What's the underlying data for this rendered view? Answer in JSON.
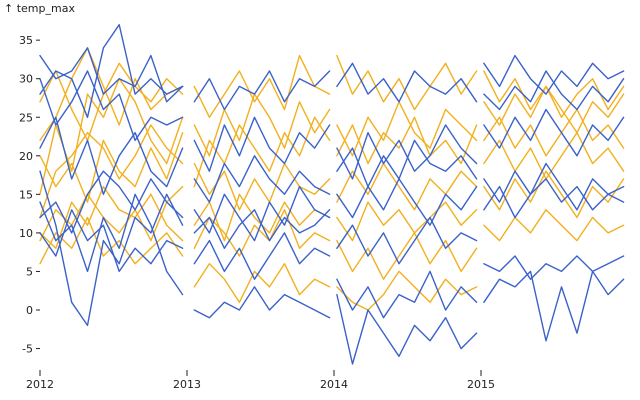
{
  "chart_data": {
    "type": "line",
    "title": "",
    "xlabel": "",
    "ylabel": "↑ temp_max",
    "ylim": [
      -7,
      38
    ],
    "x_ticks": [
      "2012",
      "2013",
      "2014",
      "2015"
    ],
    "y_ticks": [
      -5,
      0,
      5,
      10,
      15,
      20,
      25,
      30,
      35
    ],
    "grid": false,
    "legend": "none",
    "colors": {
      "orange": "#f2b01e",
      "blue": "#3b62c9"
    },
    "groups": [
      {
        "year": "2012",
        "x_start": 2012.0,
        "x_end": 2012.97
      },
      {
        "year": "2013",
        "x_start": 2013.05,
        "x_end": 2013.97
      },
      {
        "year": "2014",
        "x_start": 2014.02,
        "x_end": 2014.97
      },
      {
        "year": "2015",
        "x_start": 2015.02,
        "x_end": 2015.97
      }
    ],
    "series": [
      {
        "group": 0,
        "color": "orange",
        "values": [
          22,
          25,
          30,
          34,
          29,
          24,
          30,
          26,
          28,
          29
        ]
      },
      {
        "group": 0,
        "color": "orange",
        "values": [
          12,
          18,
          20,
          23,
          21,
          17,
          20,
          24,
          21,
          19
        ]
      },
      {
        "group": 0,
        "color": "orange",
        "values": [
          9,
          13,
          11,
          15,
          12,
          10,
          13,
          9,
          14,
          16
        ]
      },
      {
        "group": 0,
        "color": "orange",
        "values": [
          6,
          10,
          8,
          12,
          7,
          9,
          6,
          8,
          10,
          7
        ]
      },
      {
        "group": 0,
        "color": "orange",
        "values": [
          20,
          16,
          19,
          14,
          22,
          18,
          16,
          21,
          17,
          23
        ]
      },
      {
        "group": 0,
        "color": "orange",
        "values": [
          15,
          24,
          18,
          28,
          25,
          30,
          27,
          22,
          19,
          25
        ]
      },
      {
        "group": 0,
        "color": "orange",
        "values": [
          10,
          8,
          14,
          11,
          16,
          13,
          12,
          15,
          11,
          9
        ]
      },
      {
        "group": 0,
        "color": "orange",
        "values": [
          27,
          31,
          26,
          22,
          28,
          32,
          29,
          27,
          30,
          28
        ]
      },
      {
        "group": 0,
        "color": "blue",
        "values": [
          33,
          30,
          31,
          34,
          28,
          30,
          29,
          33,
          27,
          29
        ]
      },
      {
        "group": 0,
        "color": "blue",
        "values": [
          28,
          31,
          30,
          25,
          34,
          37,
          28,
          30,
          28,
          29
        ]
      },
      {
        "group": 0,
        "color": "blue",
        "values": [
          18,
          11,
          1,
          -2,
          9,
          6,
          12,
          10,
          15,
          11
        ]
      },
      {
        "group": 0,
        "color": "blue",
        "values": [
          12,
          14,
          10,
          15,
          18,
          16,
          13,
          17,
          14,
          12
        ]
      },
      {
        "group": 0,
        "color": "blue",
        "values": [
          10,
          7,
          13,
          9,
          11,
          5,
          8,
          6,
          9,
          8
        ]
      },
      {
        "group": 0,
        "color": "blue",
        "values": [
          21,
          25,
          17,
          22,
          15,
          20,
          23,
          18,
          16,
          21
        ]
      },
      {
        "group": 0,
        "color": "blue",
        "values": [
          14,
          9,
          11,
          5,
          12,
          8,
          15,
          11,
          5,
          2
        ]
      },
      {
        "group": 0,
        "color": "blue",
        "values": [
          30,
          24,
          27,
          31,
          26,
          28,
          22,
          25,
          24,
          25
        ]
      },
      {
        "group": 1,
        "color": "orange",
        "values": [
          29,
          25,
          28,
          31,
          27,
          30,
          26,
          33,
          29,
          28
        ]
      },
      {
        "group": 1,
        "color": "orange",
        "values": [
          16,
          22,
          19,
          24,
          21,
          18,
          23,
          20,
          25,
          22
        ]
      },
      {
        "group": 1,
        "color": "orange",
        "values": [
          11,
          14,
          9,
          15,
          12,
          10,
          14,
          11,
          13,
          12
        ]
      },
      {
        "group": 1,
        "color": "orange",
        "values": [
          3,
          6,
          4,
          1,
          5,
          3,
          6,
          2,
          4,
          3
        ]
      },
      {
        "group": 1,
        "color": "orange",
        "values": [
          24,
          20,
          26,
          22,
          28,
          25,
          21,
          27,
          23,
          26
        ]
      },
      {
        "group": 1,
        "color": "orange",
        "values": [
          8,
          12,
          10,
          7,
          11,
          9,
          13,
          8,
          10,
          9
        ]
      },
      {
        "group": 1,
        "color": "orange",
        "values": [
          19,
          15,
          18,
          13,
          17,
          14,
          19,
          16,
          15,
          17
        ]
      },
      {
        "group": 1,
        "color": "blue",
        "values": [
          27,
          30,
          26,
          29,
          28,
          31,
          27,
          30,
          29,
          31
        ]
      },
      {
        "group": 1,
        "color": "blue",
        "values": [
          22,
          18,
          24,
          20,
          25,
          21,
          19,
          23,
          21,
          24
        ]
      },
      {
        "group": 1,
        "color": "blue",
        "values": [
          13,
          10,
          15,
          12,
          9,
          14,
          11,
          16,
          13,
          12
        ]
      },
      {
        "group": 1,
        "color": "blue",
        "values": [
          6,
          9,
          5,
          8,
          4,
          7,
          10,
          6,
          8,
          7
        ]
      },
      {
        "group": 1,
        "color": "blue",
        "values": [
          0,
          -1,
          1,
          0,
          3,
          0,
          2,
          1,
          0,
          -1
        ]
      },
      {
        "group": 1,
        "color": "blue",
        "values": [
          17,
          14,
          19,
          16,
          20,
          17,
          15,
          18,
          16,
          15
        ]
      },
      {
        "group": 1,
        "color": "blue",
        "values": [
          10,
          12,
          8,
          11,
          13,
          9,
          12,
          10,
          11,
          13
        ]
      },
      {
        "group": 2,
        "color": "orange",
        "values": [
          33,
          28,
          31,
          27,
          30,
          26,
          29,
          32,
          28,
          31
        ]
      },
      {
        "group": 2,
        "color": "orange",
        "values": [
          24,
          20,
          25,
          22,
          27,
          23,
          21,
          26,
          24,
          22
        ]
      },
      {
        "group": 2,
        "color": "orange",
        "values": [
          14,
          18,
          15,
          19,
          16,
          13,
          17,
          15,
          18,
          16
        ]
      },
      {
        "group": 2,
        "color": "orange",
        "values": [
          9,
          5,
          8,
          4,
          7,
          10,
          6,
          9,
          5,
          8
        ]
      },
      {
        "group": 2,
        "color": "orange",
        "values": [
          3,
          1,
          0,
          2,
          5,
          3,
          1,
          4,
          2,
          3
        ]
      },
      {
        "group": 2,
        "color": "orange",
        "values": [
          20,
          24,
          19,
          23,
          21,
          25,
          20,
          22,
          19,
          24
        ]
      },
      {
        "group": 2,
        "color": "orange",
        "values": [
          12,
          9,
          14,
          11,
          13,
          10,
          12,
          14,
          11,
          13
        ]
      },
      {
        "group": 2,
        "color": "blue",
        "values": [
          29,
          32,
          28,
          30,
          27,
          31,
          29,
          28,
          30,
          27
        ]
      },
      {
        "group": 2,
        "color": "blue",
        "values": [
          21,
          17,
          23,
          19,
          22,
          18,
          20,
          24,
          21,
          19
        ]
      },
      {
        "group": 2,
        "color": "blue",
        "values": [
          15,
          12,
          16,
          13,
          17,
          14,
          11,
          15,
          13,
          16
        ]
      },
      {
        "group": 2,
        "color": "blue",
        "values": [
          8,
          11,
          7,
          10,
          6,
          9,
          12,
          8,
          10,
          9
        ]
      },
      {
        "group": 2,
        "color": "blue",
        "values": [
          2,
          -7,
          0,
          -3,
          -6,
          -2,
          -4,
          -1,
          -5,
          -3
        ]
      },
      {
        "group": 2,
        "color": "blue",
        "values": [
          4,
          0,
          3,
          -1,
          2,
          1,
          5,
          0,
          3,
          1
        ]
      },
      {
        "group": 2,
        "color": "blue",
        "values": [
          18,
          21,
          16,
          20,
          17,
          22,
          19,
          18,
          20,
          17
        ]
      },
      {
        "group": 3,
        "color": "orange",
        "values": [
          31,
          27,
          30,
          26,
          29,
          25,
          28,
          30,
          26,
          29
        ]
      },
      {
        "group": 3,
        "color": "orange",
        "values": [
          22,
          25,
          21,
          24,
          20,
          23,
          26,
          22,
          24,
          21
        ]
      },
      {
        "group": 3,
        "color": "orange",
        "values": [
          16,
          13,
          17,
          14,
          18,
          15,
          12,
          16,
          14,
          17
        ]
      },
      {
        "group": 3,
        "color": "orange",
        "values": [
          11,
          9,
          12,
          10,
          13,
          11,
          9,
          12,
          10,
          11
        ]
      },
      {
        "group": 3,
        "color": "orange",
        "values": [
          19,
          22,
          18,
          21,
          17,
          20,
          23,
          19,
          21,
          18
        ]
      },
      {
        "group": 3,
        "color": "orange",
        "values": [
          27,
          24,
          28,
          25,
          29,
          26,
          23,
          27,
          25,
          28
        ]
      },
      {
        "group": 3,
        "color": "blue",
        "values": [
          32,
          29,
          33,
          30,
          28,
          31,
          29,
          32,
          30,
          31
        ]
      },
      {
        "group": 3,
        "color": "blue",
        "values": [
          13,
          16,
          12,
          15,
          17,
          14,
          16,
          13,
          15,
          14
        ]
      },
      {
        "group": 3,
        "color": "blue",
        "values": [
          6,
          5,
          7,
          4,
          6,
          5,
          7,
          5,
          6,
          7
        ]
      },
      {
        "group": 3,
        "color": "blue",
        "values": [
          1,
          4,
          3,
          5,
          -4,
          3,
          -3,
          5,
          2,
          4
        ]
      },
      {
        "group": 3,
        "color": "blue",
        "values": [
          24,
          21,
          25,
          22,
          26,
          23,
          20,
          24,
          22,
          25
        ]
      },
      {
        "group": 3,
        "color": "blue",
        "values": [
          17,
          14,
          18,
          15,
          19,
          16,
          13,
          17,
          15,
          16
        ]
      },
      {
        "group": 3,
        "color": "blue",
        "values": [
          28,
          26,
          29,
          27,
          31,
          28,
          26,
          29,
          27,
          30
        ]
      }
    ]
  }
}
